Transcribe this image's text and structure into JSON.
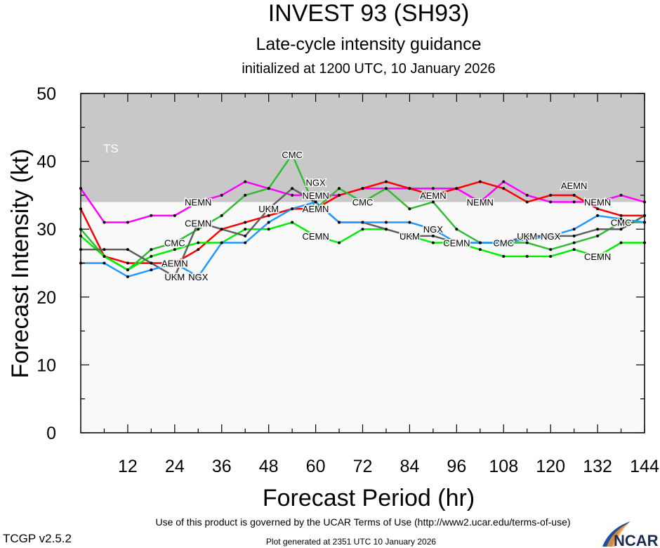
{
  "chart_data": {
    "type": "line",
    "title": "INVEST 93 (SH93)",
    "subtitle": "Late-cycle intensity guidance",
    "subtitle2": "initialized at 1200 UTC, 10 January 2026",
    "xlabel": "Forecast Period (hr)",
    "ylabel": "Forecast Intensity (kt)",
    "xlim": [
      0,
      144
    ],
    "ylim": [
      0,
      50
    ],
    "xticks": [
      12,
      24,
      36,
      48,
      60,
      72,
      84,
      96,
      108,
      120,
      132,
      144
    ],
    "yticks": [
      0,
      10,
      20,
      30,
      40,
      50
    ],
    "bands": [
      {
        "label": "TS",
        "from": 34,
        "to": 50,
        "color": "#c8c8c8"
      }
    ],
    "plot_bg": "#f9f9f9",
    "x": [
      0,
      6,
      12,
      18,
      24,
      30,
      36,
      42,
      48,
      54,
      60,
      66,
      72,
      78,
      84,
      90,
      96,
      102,
      108,
      114,
      120,
      126,
      132,
      138,
      144
    ],
    "series": [
      {
        "name": "NEMN",
        "color": "#ff00ff",
        "label_at": [
          30,
          60,
          102,
          132
        ],
        "values": [
          36,
          31,
          31,
          32,
          32,
          34,
          35,
          37,
          36,
          35,
          35,
          35,
          36,
          36,
          36,
          36,
          36,
          34,
          37,
          35,
          34,
          34,
          34,
          35,
          34
        ]
      },
      {
        "name": "AEMN",
        "color": "#ff0000",
        "label_at": [
          24,
          60,
          90,
          126
        ],
        "values": [
          33,
          26,
          25,
          25,
          25,
          27,
          30,
          31,
          32,
          33,
          33,
          35,
          36,
          37,
          36,
          35,
          36,
          37,
          36,
          34,
          35,
          35,
          33,
          32,
          32
        ]
      },
      {
        "name": "CMC",
        "color": "#33bb33",
        "label_at": [
          24,
          54,
          72,
          108,
          138
        ],
        "values": [
          30,
          26,
          24,
          27,
          28,
          30,
          32,
          35,
          36,
          41,
          33,
          36,
          34,
          36,
          33,
          34,
          30,
          28,
          28,
          28,
          27,
          28,
          29,
          31,
          31
        ]
      },
      {
        "name": "CEMN",
        "color": "#00ee00",
        "label_at": [
          30,
          60,
          96,
          132
        ],
        "values": [
          29,
          26,
          24,
          26,
          27,
          28,
          28,
          30,
          30,
          31,
          29,
          28,
          30,
          30,
          29,
          28,
          28,
          27,
          26,
          26,
          26,
          27,
          26,
          28,
          28
        ]
      },
      {
        "name": "UKM",
        "color": "#606060",
        "label_at": [
          24,
          48,
          84,
          114
        ],
        "values": [
          27,
          27,
          27,
          25,
          23,
          31,
          30,
          29,
          33,
          36,
          34,
          31,
          31,
          30,
          29,
          29,
          28,
          28,
          28,
          29,
          29,
          29,
          30,
          30,
          32
        ]
      },
      {
        "name": "NGX",
        "color": "#2299ff",
        "label_at": [
          30,
          60,
          90,
          120
        ],
        "values": [
          25,
          25,
          23,
          24,
          25,
          23,
          28,
          28,
          31,
          33,
          34,
          31,
          31,
          31,
          31,
          30,
          28,
          28,
          28,
          28.5,
          29,
          30,
          32,
          31.5,
          31
        ]
      }
    ]
  },
  "footer": {
    "terms": "Use of this product is governed by the UCAR Terms of Use (http://www2.ucar.edu/terms-of-use)",
    "version": "TCGP v2.5.2",
    "generated": "Plot generated at 2351 UTC   10 January 2026",
    "logo": "NCAR"
  }
}
